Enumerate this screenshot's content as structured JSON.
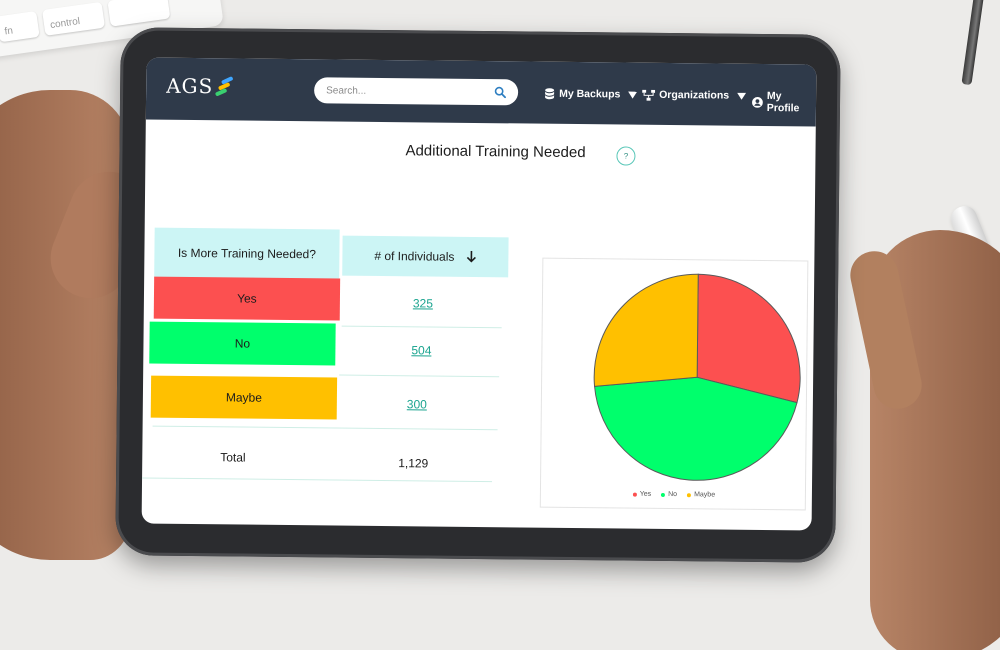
{
  "keyboard": {
    "keys": [
      "fn",
      "control"
    ]
  },
  "header": {
    "logo_text": "AGS",
    "search_placeholder": "Search...",
    "nav": {
      "backups": "My Backups",
      "organizations": "Organizations",
      "profile": "My Profile"
    }
  },
  "page": {
    "title": "Additional Training Needed",
    "help": "?"
  },
  "table": {
    "headers": {
      "category": "Is More Training Needed?",
      "count": "# of Individuals"
    },
    "rows": [
      {
        "label": "Yes",
        "value": "325",
        "color": "#fc5050"
      },
      {
        "label": "No",
        "value": "504",
        "color": "#00ff6c"
      },
      {
        "label": "Maybe",
        "value": "300",
        "color": "#ffc000"
      }
    ],
    "total_label": "Total",
    "total_value": "1,129"
  },
  "chart_data": {
    "type": "pie",
    "categories": [
      "Yes",
      "No",
      "Maybe"
    ],
    "values": [
      325,
      504,
      300
    ],
    "colors": [
      "#fc5050",
      "#00ff6c",
      "#ffc000"
    ],
    "legend_position": "bottom"
  }
}
